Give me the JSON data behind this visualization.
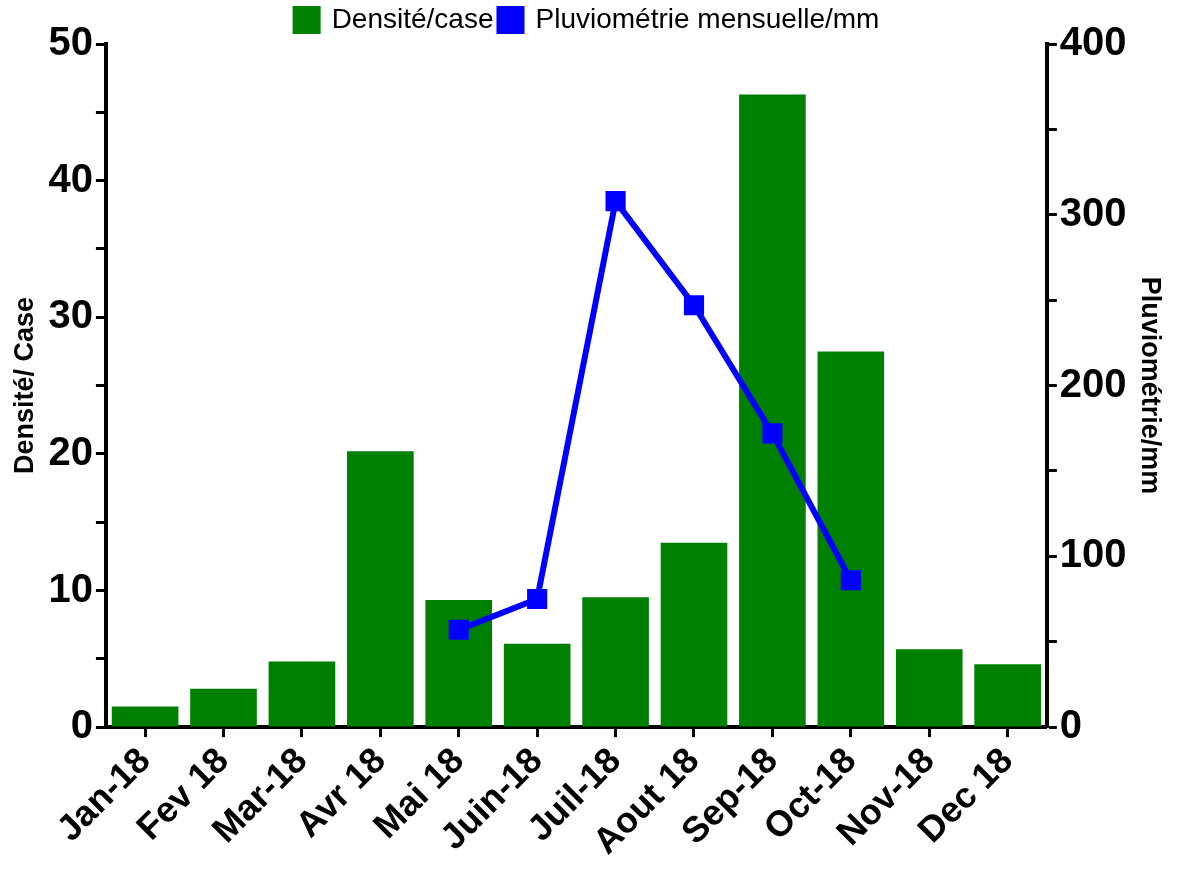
{
  "chart_data": {
    "type": "bar",
    "categories": [
      "Jan-18",
      "Fev 18",
      "Mar-18",
      "Avr 18",
      "Mai 18",
      "Juin-18",
      "Juil-18",
      "Aout 18",
      "Sep-18",
      "Oct-18",
      "Nov-18",
      "Dec 18"
    ],
    "series": [
      {
        "name": "Densité/case",
        "color": "#008000",
        "values": [
          1.5,
          2.8,
          4.8,
          20.2,
          9.3,
          6.1,
          9.5,
          13.5,
          46.3,
          27.5,
          5.7,
          4.6
        ]
      },
      {
        "name": "Pluviométrie mensuelle/mm",
        "type": "line",
        "axis": "y2",
        "color": "#0000ff",
        "values": [
          null,
          null,
          null,
          null,
          57,
          75,
          308,
          247,
          172,
          86,
          null,
          null
        ]
      }
    ],
    "ylabel": "Densité/ Case",
    "y2label": "Pluviométrie/mm",
    "ylim": [
      0,
      50
    ],
    "yticks": [
      0,
      {
        "value": 5,
        "label": null
      },
      10,
      {
        "value": 15,
        "label": null
      },
      20,
      {
        "value": 25,
        "label": null
      },
      30,
      {
        "value": 35,
        "label": null
      },
      40,
      {
        "value": 45,
        "label": null
      },
      50
    ],
    "y2lim": [
      0,
      400
    ],
    "y2ticks": [
      0,
      {
        "value": 50,
        "label": null
      },
      100,
      {
        "value": 150,
        "label": null
      },
      200,
      {
        "value": 250,
        "label": null
      },
      300,
      {
        "value": 350,
        "label": null
      },
      400
    ],
    "grid": false,
    "legend": "top",
    "marker": "square",
    "line_style": "solid"
  }
}
